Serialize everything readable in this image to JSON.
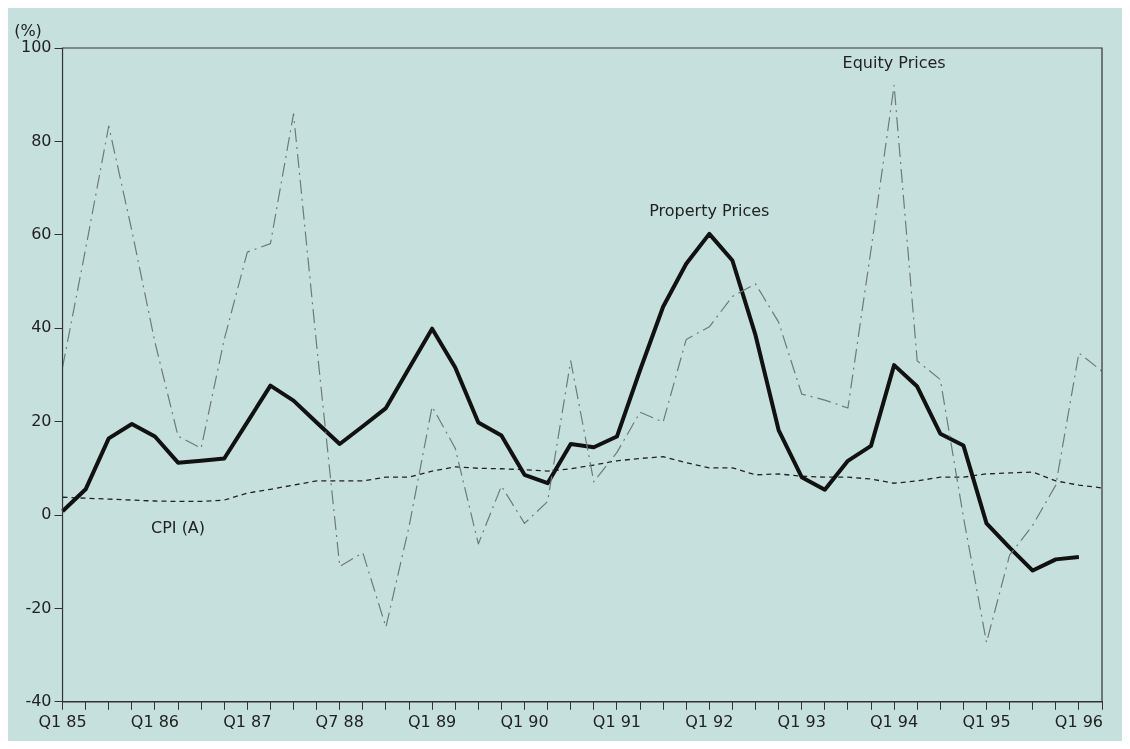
{
  "chart_data": {
    "type": "line",
    "ylabel": "(%)",
    "categories": [
      "Q1 85",
      null,
      null,
      null,
      "Q1 86",
      null,
      null,
      null,
      "Q1 87",
      null,
      null,
      null,
      "Q7 88",
      null,
      null,
      null,
      "Q1 89",
      null,
      null,
      null,
      "Q1 90",
      null,
      null,
      null,
      "Q1 91",
      null,
      null,
      null,
      "Q1 92",
      null,
      null,
      null,
      "Q1 93",
      null,
      null,
      null,
      "Q1 94",
      null,
      null,
      null,
      "Q1 95",
      null,
      null,
      null,
      "Q1 96",
      null
    ],
    "series": [
      {
        "name": "Equity Prices",
        "color": "#6e7a78",
        "line_style": "dashed",
        "values": [
          31.6,
          57,
          83.3,
          60.9,
          37,
          16.9,
          14.3,
          37.6,
          56.3,
          58.1,
          85.9,
          36.4,
          -11,
          -8.1,
          -24,
          -2.5,
          23.2,
          14.3,
          -6.2,
          6.2,
          -1.8,
          2.9,
          33,
          7.1,
          13.4,
          22,
          19.9,
          37.6,
          40.3,
          46.8,
          49.5,
          41.3,
          25.9,
          24.6,
          22.9,
          56.8,
          92,
          33,
          29,
          -0.4,
          -27.3,
          -8.6,
          -2.2,
          6.4,
          34.7,
          30.8
        ]
      },
      {
        "name": "Property Prices",
        "color": "#111111",
        "line_style": "solid",
        "values": [
          0.8,
          5.5,
          16.4,
          19.5,
          16.8,
          11.2,
          11.6,
          12.1,
          19.9,
          27.7,
          24.5,
          19.8,
          15.2,
          19,
          22.9,
          31.4,
          39.9,
          31.6,
          19.8,
          17,
          8.6,
          6.8,
          15.2,
          14.5,
          16.8,
          31,
          44.6,
          53.8,
          60.2,
          54.5,
          38.5,
          18.2,
          8.1,
          5.4,
          11.6,
          14.8,
          32.1,
          27.5,
          17.4,
          14.9,
          -1.8,
          -7,
          -11.9,
          -9.5,
          -9,
          null
        ]
      },
      {
        "name": "CPI (A)",
        "color": "#222222",
        "line_style": "dotted",
        "values": [
          3.8,
          3.6,
          3.4,
          3.2,
          3,
          2.9,
          2.9,
          3.2,
          4.7,
          5.5,
          6.4,
          7.3,
          7.3,
          7.3,
          8.1,
          8.1,
          9.4,
          10.3,
          10,
          9.9,
          9.7,
          9.4,
          9.9,
          10.7,
          11.6,
          12.1,
          12.5,
          11.2,
          10.1,
          10.1,
          8.6,
          8.8,
          8.3,
          8.1,
          8.1,
          7.7,
          6.8,
          7.3,
          8.1,
          8.1,
          8.8,
          9,
          9.2,
          7.3,
          6.4,
          5.8
        ]
      }
    ],
    "ylim": [
      -40,
      100
    ],
    "yticks": [
      -40,
      -20,
      0,
      20,
      40,
      60,
      80,
      100
    ],
    "grid": false,
    "legend": false,
    "marker": "none"
  }
}
